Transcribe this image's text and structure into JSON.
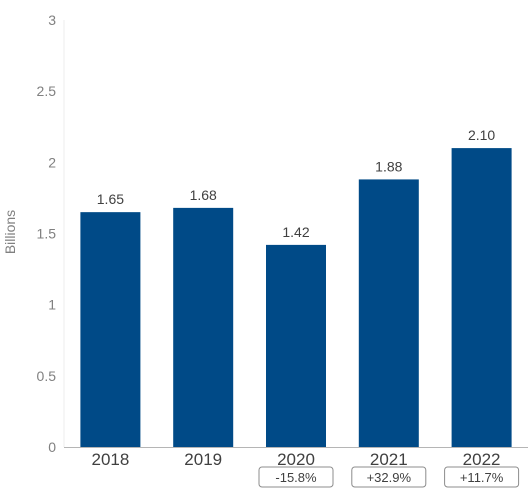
{
  "chart_data": {
    "type": "bar",
    "categories": [
      "2018",
      "2019",
      "2020",
      "2021",
      "2022"
    ],
    "values": [
      1.65,
      1.68,
      1.42,
      1.88,
      2.1
    ],
    "value_labels": [
      "1.65",
      "1.68",
      "1.42",
      "1.88",
      "2.10"
    ],
    "changes": [
      "",
      "",
      "-15.8%",
      "+32.9%",
      "+11.7%"
    ],
    "ylabel": "Billions",
    "xlabel": "",
    "title": "",
    "ylim": [
      0,
      3
    ],
    "yticks": [
      "0",
      "0.5",
      "1",
      "1.5",
      "2",
      "2.5",
      "3"
    ],
    "grid": false,
    "legend": "none",
    "colors": {
      "bar": "#004A87",
      "axis": "#b5b5b5",
      "box_border": "#8c8c8c"
    }
  }
}
